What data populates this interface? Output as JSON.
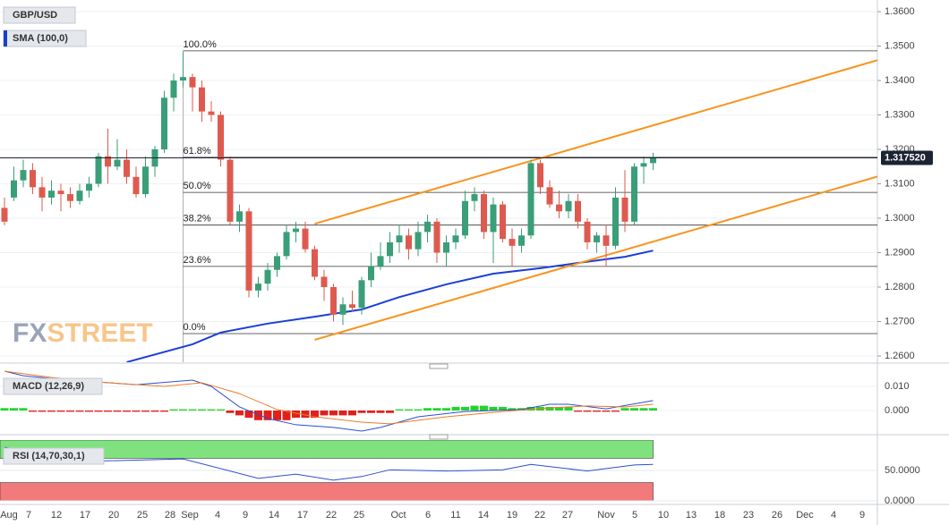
{
  "chart_data": {
    "type": "candlestick",
    "symbol": "GBP/USD",
    "watermark": [
      "FX",
      "STREET"
    ],
    "bull_color": "#3a9e78",
    "bear_color": "#de5a4f",
    "ylim": [
      1.26,
      1.36
    ],
    "yticks": [
      {
        "value": 1.26,
        "label": "1.2600"
      },
      {
        "value": 1.27,
        "label": "1.2700"
      },
      {
        "value": 1.28,
        "label": "1.2800"
      },
      {
        "value": 1.29,
        "label": "1.2900"
      },
      {
        "value": 1.3,
        "label": "1.3000"
      },
      {
        "value": 1.31,
        "label": "1.3100"
      },
      {
        "value": 1.32,
        "label": "1.3200"
      },
      {
        "value": 1.33,
        "label": "1.3300"
      },
      {
        "value": 1.34,
        "label": "1.3400"
      },
      {
        "value": 1.35,
        "label": "1.3500"
      },
      {
        "value": 1.36,
        "label": "1.3600"
      }
    ],
    "grid": true,
    "last_price": {
      "value": 1.31752,
      "label": "1.317520"
    },
    "xticks": [
      "Aug",
      "7",
      "12",
      "17",
      "20",
      "25",
      "28",
      "Sep",
      "4",
      "9",
      "14",
      "17",
      "22",
      "25",
      "Oct",
      "6",
      "11",
      "14",
      "19",
      "22",
      "27",
      "Nov",
      "5",
      "10",
      "13",
      "18",
      "23",
      "26",
      "Dec",
      "4",
      "9"
    ],
    "ohlc": [
      [
        1.303,
        1.306,
        1.298,
        1.299
      ],
      [
        1.306,
        1.315,
        1.305,
        1.311
      ],
      [
        1.311,
        1.317,
        1.309,
        1.314
      ],
      [
        1.314,
        1.316,
        1.307,
        1.309
      ],
      [
        1.309,
        1.312,
        1.302,
        1.306
      ],
      [
        1.306,
        1.311,
        1.304,
        1.308
      ],
      [
        1.308,
        1.31,
        1.302,
        1.307
      ],
      [
        1.307,
        1.309,
        1.303,
        1.305
      ],
      [
        1.305,
        1.31,
        1.304,
        1.308
      ],
      [
        1.308,
        1.312,
        1.306,
        1.31
      ],
      [
        1.31,
        1.319,
        1.309,
        1.318
      ],
      [
        1.318,
        1.326,
        1.31,
        1.315
      ],
      [
        1.315,
        1.323,
        1.314,
        1.317
      ],
      [
        1.317,
        1.32,
        1.31,
        1.312
      ],
      [
        1.312,
        1.315,
        1.306,
        1.307
      ],
      [
        1.307,
        1.318,
        1.306,
        1.315
      ],
      [
        1.315,
        1.321,
        1.312,
        1.32
      ],
      [
        1.32,
        1.337,
        1.319,
        1.335
      ],
      [
        1.335,
        1.342,
        1.331,
        1.34
      ],
      [
        1.34,
        1.3482,
        1.338,
        1.341
      ],
      [
        1.341,
        1.342,
        1.331,
        1.338
      ],
      [
        1.338,
        1.34,
        1.328,
        1.331
      ],
      [
        1.331,
        1.334,
        1.328,
        1.33
      ],
      [
        1.33,
        1.331,
        1.315,
        1.317
      ],
      [
        1.317,
        1.318,
        1.298,
        1.299
      ],
      [
        1.299,
        1.304,
        1.296,
        1.302
      ],
      [
        1.302,
        1.303,
        1.277,
        1.279
      ],
      [
        1.279,
        1.283,
        1.277,
        1.281
      ],
      [
        1.281,
        1.287,
        1.279,
        1.285
      ],
      [
        1.285,
        1.29,
        1.283,
        1.289
      ],
      [
        1.289,
        1.298,
        1.288,
        1.296
      ],
      [
        1.296,
        1.299,
        1.293,
        1.297
      ],
      [
        1.297,
        1.299,
        1.29,
        1.291
      ],
      [
        1.291,
        1.292,
        1.282,
        1.283
      ],
      [
        1.283,
        1.285,
        1.276,
        1.28
      ],
      [
        1.28,
        1.281,
        1.27,
        1.272
      ],
      [
        1.272,
        1.277,
        1.269,
        1.275
      ],
      [
        1.275,
        1.279,
        1.273,
        1.274
      ],
      [
        1.274,
        1.283,
        1.272,
        1.282
      ],
      [
        1.282,
        1.29,
        1.28,
        1.286
      ],
      [
        1.286,
        1.293,
        1.285,
        1.289
      ],
      [
        1.289,
        1.296,
        1.287,
        1.293
      ],
      [
        1.293,
        1.298,
        1.29,
        1.295
      ],
      [
        1.295,
        1.297,
        1.288,
        1.291
      ],
      [
        1.291,
        1.299,
        1.289,
        1.296
      ],
      [
        1.296,
        1.301,
        1.293,
        1.299
      ],
      [
        1.299,
        1.3,
        1.287,
        1.29
      ],
      [
        1.29,
        1.295,
        1.286,
        1.293
      ],
      [
        1.293,
        1.297,
        1.291,
        1.295
      ],
      [
        1.295,
        1.308,
        1.294,
        1.305
      ],
      [
        1.305,
        1.309,
        1.302,
        1.307
      ],
      [
        1.307,
        1.308,
        1.294,
        1.296
      ],
      [
        1.296,
        1.306,
        1.287,
        1.304
      ],
      [
        1.304,
        1.305,
        1.293,
        1.294
      ],
      [
        1.294,
        1.297,
        1.286,
        1.292
      ],
      [
        1.292,
        1.297,
        1.29,
        1.295
      ],
      [
        1.295,
        1.317,
        1.294,
        1.316
      ],
      [
        1.316,
        1.317,
        1.307,
        1.309
      ],
      [
        1.309,
        1.311,
        1.303,
        1.304
      ],
      [
        1.304,
        1.308,
        1.3,
        1.302
      ],
      [
        1.302,
        1.307,
        1.3,
        1.305
      ],
      [
        1.305,
        1.307,
        1.297,
        1.299
      ],
      [
        1.299,
        1.3,
        1.291,
        1.293
      ],
      [
        1.293,
        1.296,
        1.29,
        1.295
      ],
      [
        1.295,
        1.298,
        1.286,
        1.292
      ],
      [
        1.292,
        1.309,
        1.291,
        1.306
      ],
      [
        1.306,
        1.314,
        1.296,
        1.299
      ],
      [
        1.299,
        1.316,
        1.298,
        1.315
      ],
      [
        1.315,
        1.318,
        1.31,
        1.316
      ],
      [
        1.316,
        1.319,
        1.314,
        1.31752
      ]
    ],
    "sma": {
      "name": "SMA (100,0)",
      "color": "#1a3fd6",
      "x": [
        13,
        20,
        23,
        28,
        33,
        38,
        42,
        47,
        52,
        57,
        61,
        66,
        69
      ],
      "values": [
        1.2582,
        1.2634,
        1.2668,
        1.2694,
        1.2714,
        1.2735,
        1.2771,
        1.2808,
        1.2839,
        1.2855,
        1.287,
        1.2888,
        1.2906
      ]
    },
    "fib": [
      {
        "label": "100.0%",
        "value": 1.3486
      },
      {
        "label": "61.8%",
        "value": 1.3177
      },
      {
        "label": "50.0%",
        "value": 1.3075
      },
      {
        "label": "38.2%",
        "value": 1.298
      },
      {
        "label": "23.6%",
        "value": 1.286
      },
      {
        "label": "0.0%",
        "value": 1.2665
      }
    ],
    "fib_start": 19,
    "channels": [
      {
        "color": "#f7941d",
        "x": [
          33,
          93
        ],
        "values": [
          1.2984,
          1.346
        ]
      },
      {
        "color": "#f7941d",
        "x": [
          33,
          93
        ],
        "values": [
          1.2647,
          1.3122
        ]
      }
    ],
    "macd": {
      "name": "MACD (12,26,9)",
      "y2ticks": [
        {
          "value": 0.01,
          "label": "0.010"
        },
        {
          "value": 0,
          "label": "0.000"
        }
      ],
      "histogram": [
        0.001,
        0.001,
        0.001,
        -0.0005,
        -0.0005,
        -0.0005,
        -0.0005,
        -0.0005,
        -0.0005,
        -0.0005,
        -0.0005,
        -0.0005,
        -0.0005,
        -0.0005,
        -0.0005,
        -0.0005,
        -0.0005,
        -0.0005,
        0.0005,
        0.0005,
        0.0005,
        0.0005,
        0.0005,
        0.0005,
        -0.001,
        -0.002,
        -0.003,
        -0.004,
        -0.004,
        -0.004,
        -0.004,
        -0.003,
        -0.003,
        -0.003,
        -0.002,
        -0.002,
        -0.002,
        -0.002,
        -0.001,
        -0.001,
        -0.001,
        -0.001,
        0.0005,
        0.0005,
        0.0005,
        0.001,
        0.001,
        0.001,
        0.0015,
        0.0015,
        0.002,
        0.002,
        0.0015,
        0.0015,
        0.001,
        0.001,
        0.0015,
        0.0015,
        0.0015,
        0.0015,
        0.0015,
        -0.0005,
        -0.0005,
        -0.0005,
        -0.0005,
        -0.0005,
        0.001,
        0.001,
        0.001,
        0.001
      ],
      "line": {
        "color": "#2a4fd0",
        "x": [
          0,
          2,
          7,
          14,
          20,
          22,
          25,
          28,
          31,
          35,
          38,
          40,
          44,
          49,
          55,
          58,
          60,
          64,
          69
        ],
        "values": [
          0.0163,
          0.0144,
          0.0126,
          0.0107,
          0.0126,
          0.01,
          0.0015,
          -0.0033,
          -0.0059,
          -0.007,
          -0.0085,
          -0.007,
          -0.0026,
          -0.0004,
          0.0004,
          0.0026,
          0.0026,
          0.0007,
          0.0041
        ]
      },
      "signal": {
        "color": "#f07b24",
        "x": [
          0,
          5,
          11,
          17,
          21,
          25,
          29,
          33,
          38,
          41,
          47,
          53,
          58,
          62,
          66,
          69
        ],
        "values": [
          0.0163,
          0.0137,
          0.0115,
          0.01,
          0.0115,
          0.007,
          0.0004,
          -0.0026,
          -0.0048,
          -0.0055,
          -0.0026,
          -0.0004,
          0.0011,
          0.0019,
          0.0015,
          0.0026
        ]
      }
    },
    "rsi": {
      "name": "RSI (14,70,30,1)",
      "overbought": 70,
      "oversold": 30,
      "ylim": [
        0,
        100
      ],
      "y2ticks": [
        {
          "value": 50,
          "label": "50.0000"
        },
        {
          "value": 0,
          "label": "0.0000"
        }
      ],
      "line": {
        "color": "#2a4fd0",
        "x": [
          0,
          9,
          19,
          27,
          31,
          35,
          38,
          41,
          47,
          53,
          56,
          62,
          67,
          69
        ],
        "values": [
          88,
          65,
          69,
          37,
          44,
          34,
          40,
          51,
          49,
          51,
          60,
          49,
          59,
          60
        ]
      }
    }
  }
}
